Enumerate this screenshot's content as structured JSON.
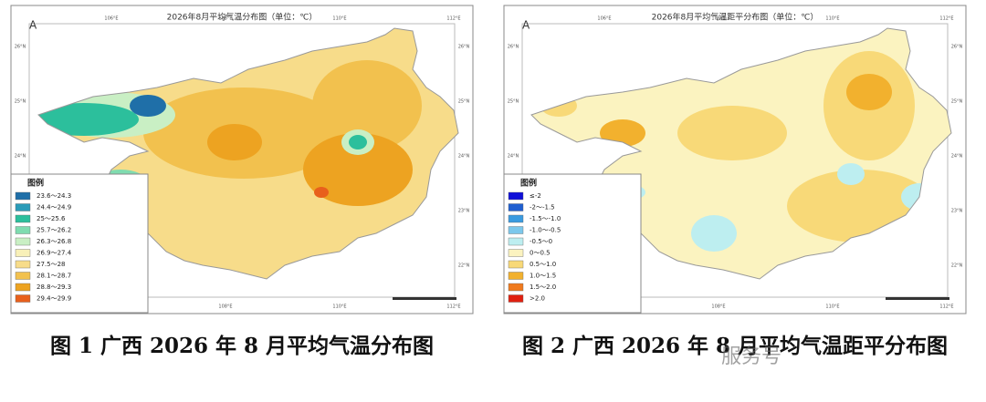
{
  "panels": [
    {
      "title": "2026年8月平均气温分布图（单位：℃）",
      "legend": {
        "heading": "图例",
        "items": [
          {
            "label": "23.6～24.3",
            "color": "#1f6fa8"
          },
          {
            "label": "24.4～24.9",
            "color": "#2a9bb8"
          },
          {
            "label": "25～25.6",
            "color": "#2cbf9c"
          },
          {
            "label": "25.7～26.2",
            "color": "#7fdcb0"
          },
          {
            "label": "26.3～26.8",
            "color": "#c9efc4"
          },
          {
            "label": "26.9～27.4",
            "color": "#f8f0b8"
          },
          {
            "label": "27.5～28",
            "color": "#f7dc8a"
          },
          {
            "label": "28.1～28.7",
            "color": "#f2c14e"
          },
          {
            "label": "28.8～29.3",
            "color": "#eda321"
          },
          {
            "label": "29.4～29.9",
            "color": "#e8601c"
          }
        ]
      },
      "caption": "图 1 广西 2026 年 8 月平均气温分布图"
    },
    {
      "title": "2026年8月平均气温距平分布图（单位：℃）",
      "legend": {
        "heading": "图例",
        "items": [
          {
            "label": "≤-2",
            "color": "#1010d8"
          },
          {
            "label": "-2～-1.5",
            "color": "#1f5fd0"
          },
          {
            "label": "-1.5～-1.0",
            "color": "#3a9be0"
          },
          {
            "label": "-1.0～-0.5",
            "color": "#7cc8ec"
          },
          {
            "label": "-0.5～0",
            "color": "#bdeef0"
          },
          {
            "label": "0～0.5",
            "color": "#fbf3c0"
          },
          {
            "label": "0.5～1.0",
            "color": "#f8d978"
          },
          {
            "label": "1.0～1.5",
            "color": "#f2b12e"
          },
          {
            "label": "1.5～2.0",
            "color": "#f07a1e"
          },
          {
            "label": ">2.0",
            "color": "#e02010"
          }
        ]
      },
      "caption": "图 2 广西 2026 年 8 月平均气温距平分布图"
    }
  ],
  "lon_labels": [
    "106°E",
    "108°E",
    "110°E",
    "112°E"
  ],
  "lat_labels": [
    "26°N",
    "25°N",
    "24°N",
    "23°N",
    "22°N"
  ],
  "watermark": "服务号"
}
